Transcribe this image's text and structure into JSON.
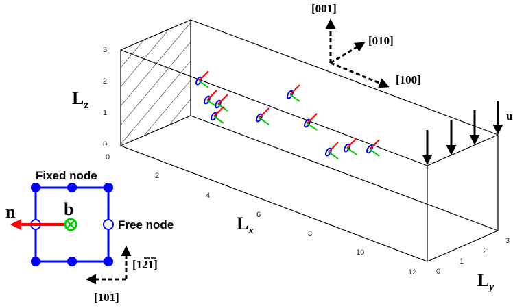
{
  "axes": {
    "lz": "L",
    "lz_sub": "z",
    "lx": "L",
    "lx_sub": "x",
    "ly": "L",
    "ly_sub": "y",
    "z_ticks": [
      "3",
      "2",
      "1",
      "0"
    ],
    "x_ticks": [
      "0",
      "2",
      "4",
      "6",
      "8",
      "10",
      "12"
    ],
    "y_ticks": [
      "0",
      "1",
      "2",
      "3"
    ]
  },
  "directions": {
    "d001": "[001]",
    "d010": "[010]",
    "d100": "[100]"
  },
  "load_label": "u",
  "inset": {
    "fixed_node": "Fixed node",
    "free_node": "Free node",
    "n": "n",
    "b": "b",
    "d_121": "[121]",
    "d_101": "[101]"
  },
  "colors": {
    "loop": "#0000ff",
    "normal": "#ff0000",
    "burgers": "#00cc00",
    "frame": "#000000"
  }
}
